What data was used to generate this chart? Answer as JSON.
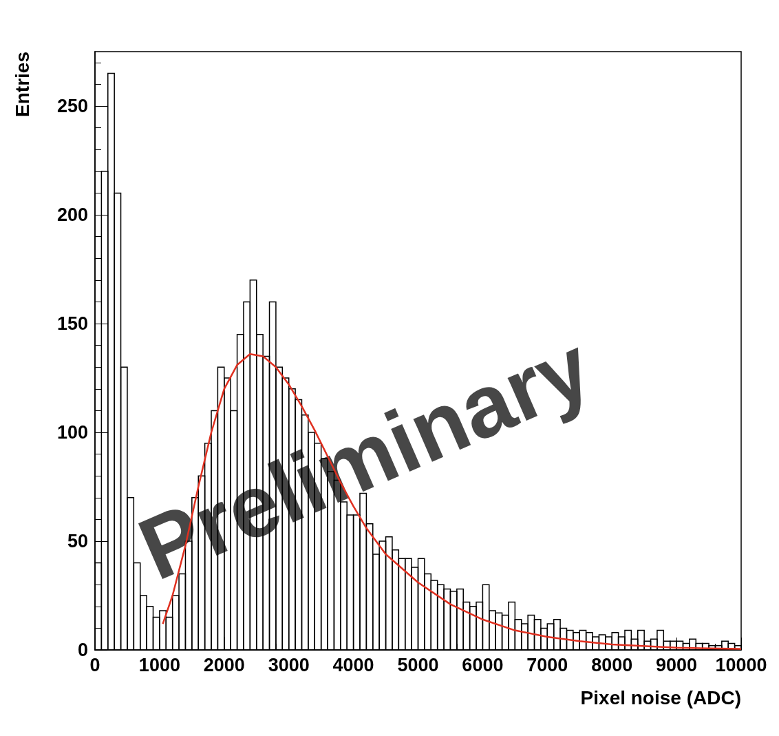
{
  "chart_data": {
    "type": "histogram",
    "xlabel": "Pixel noise (ADC)",
    "ylabel": "Entries",
    "annotations": [
      "Preliminary"
    ],
    "xlim": [
      0,
      10000
    ],
    "xticks": [
      0,
      1000,
      2000,
      3000,
      4000,
      5000,
      6000,
      7000,
      8000,
      9000,
      10000
    ],
    "ylim": [
      0,
      275
    ],
    "yticks": [
      0,
      50,
      100,
      150,
      200,
      250
    ],
    "grid": false,
    "series": [
      {
        "type": "histogram",
        "color": "#000000",
        "bins": [
          0,
          100,
          200,
          300,
          400,
          500,
          600,
          700,
          800,
          900,
          1000,
          1100,
          1200,
          1300,
          1400,
          1500,
          1600,
          1700,
          1800,
          1900,
          2000,
          2100,
          2200,
          2300,
          2400,
          2500,
          2600,
          2700,
          2800,
          2900,
          3000,
          3100,
          3200,
          3300,
          3400,
          3500,
          3600,
          3700,
          3800,
          3900,
          4000,
          4100,
          4200,
          4300,
          4400,
          4500,
          4600,
          4700,
          4800,
          4900,
          5000,
          5100,
          5200,
          5300,
          5400,
          5500,
          5600,
          5700,
          5800,
          5900,
          6000,
          6100,
          6200,
          6300,
          6400,
          6500,
          6600,
          6700,
          6800,
          6900,
          7000,
          7100,
          7200,
          7300,
          7400,
          7500,
          7600,
          7700,
          7800,
          7900,
          8000,
          8100,
          8200,
          8300,
          8400,
          8500,
          8600,
          8700,
          8800,
          8900,
          9000,
          9100,
          9200,
          9300,
          9400,
          9500,
          9600,
          9700,
          9800,
          9900,
          10000
        ],
        "values": [
          40,
          220,
          265,
          210,
          130,
          70,
          40,
          25,
          20,
          15,
          18,
          15,
          25,
          35,
          50,
          70,
          80,
          95,
          110,
          130,
          125,
          110,
          145,
          160,
          170,
          145,
          135,
          160,
          130,
          125,
          120,
          115,
          108,
          100,
          95,
          88,
          82,
          78,
          68,
          62,
          62,
          72,
          58,
          44,
          50,
          52,
          46,
          42,
          42,
          38,
          42,
          35,
          32,
          30,
          28,
          27,
          28,
          22,
          20,
          22,
          30,
          18,
          17,
          16,
          22,
          14,
          12,
          16,
          14,
          10,
          12,
          14,
          10,
          9,
          8,
          9,
          8,
          6,
          7,
          6,
          8,
          6,
          9,
          5,
          9,
          4,
          5,
          9,
          4,
          4,
          4,
          3,
          5,
          3,
          3,
          2,
          2,
          4,
          3,
          2
        ]
      },
      {
        "type": "line",
        "color": "#e03020",
        "marker": "none",
        "x": [
          1050,
          1200,
          1400,
          1600,
          1800,
          2000,
          2200,
          2400,
          2600,
          2800,
          3000,
          3200,
          3400,
          3600,
          3800,
          4000,
          4200,
          4500,
          5000,
          5500,
          6000,
          6500,
          7000,
          7500,
          8000,
          9000,
          10000
        ],
        "values": [
          12,
          25,
          48,
          75,
          100,
          120,
          131,
          136,
          135,
          130,
          122,
          112,
          101,
          89,
          77,
          66,
          56,
          44,
          31,
          21,
          14,
          9,
          6,
          4,
          2.5,
          1,
          0.5
        ]
      }
    ]
  }
}
